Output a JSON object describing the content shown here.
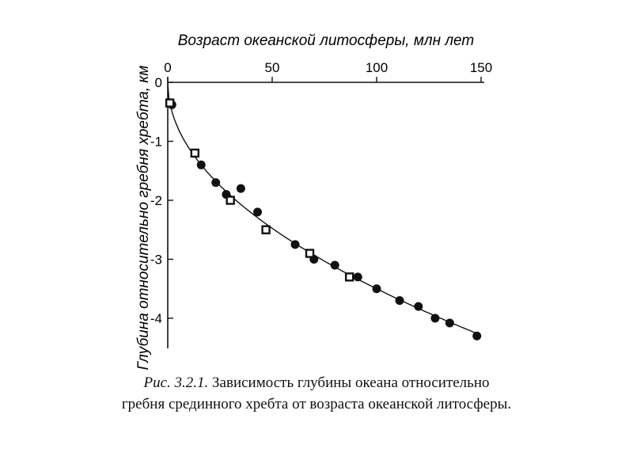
{
  "chart_data": {
    "type": "scatter",
    "xlabel": "Возраст океанской литосферы, млн лет",
    "ylabel": "Глубина относительно гребня хребта, км",
    "xlim": [
      0,
      150
    ],
    "ylim": [
      -4.5,
      0
    ],
    "x_ticks": [
      0,
      50,
      100,
      150
    ],
    "y_ticks": [
      0,
      -1,
      -2,
      -3,
      -4
    ],
    "x_tick_labels": [
      "0",
      "50",
      "100",
      "150"
    ],
    "y_tick_labels": [
      "0",
      "-1",
      "-2",
      "-3",
      "-4"
    ],
    "x_axis_position": "top",
    "grid": false,
    "series": [
      {
        "marker": "filled-circle",
        "x": [
          2,
          16,
          23,
          28,
          35,
          43,
          61,
          70,
          80,
          91,
          100,
          111,
          120,
          128,
          135,
          148
        ],
        "y": [
          -0.38,
          -1.4,
          -1.7,
          -1.9,
          -1.8,
          -2.2,
          -2.75,
          -3.0,
          -3.1,
          -3.3,
          -3.5,
          -3.7,
          -3.8,
          -4.0,
          -4.08,
          -4.3
        ]
      },
      {
        "marker": "open-square",
        "x": [
          1,
          13,
          30,
          47,
          68,
          87
        ],
        "y": [
          -0.35,
          -1.2,
          -2.0,
          -2.5,
          -2.9,
          -3.3
        ]
      },
      {
        "marker": "line",
        "model": "-0.35 * sqrt(age)",
        "x_range": [
          0,
          148
        ]
      }
    ]
  },
  "caption": {
    "prefix": "Рис. 3.2.1.",
    "line1": "Зависимость глубины океана относительно",
    "line2": "гребня срединного хребта от возраста океанской литосферы."
  }
}
